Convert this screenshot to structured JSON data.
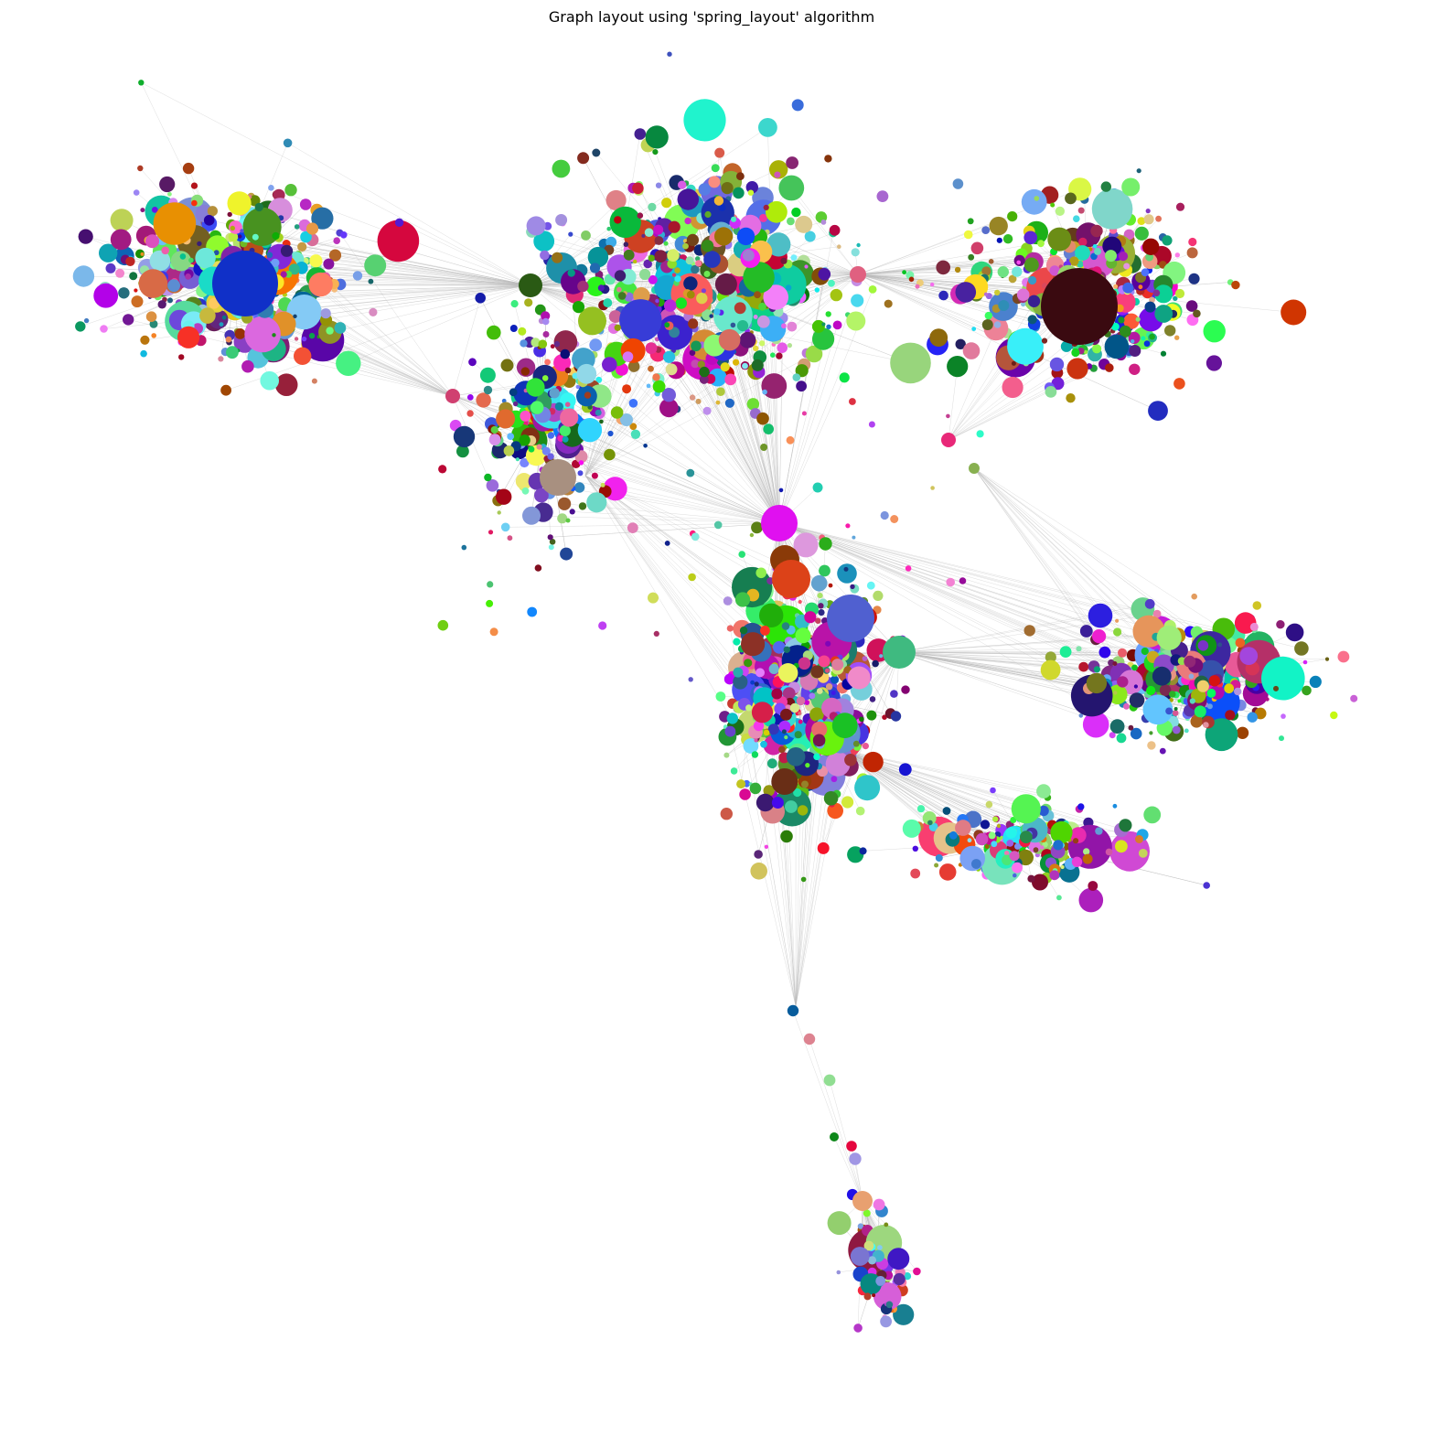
{
  "title": "Graph layout using 'spring_layout' algorithm"
}
